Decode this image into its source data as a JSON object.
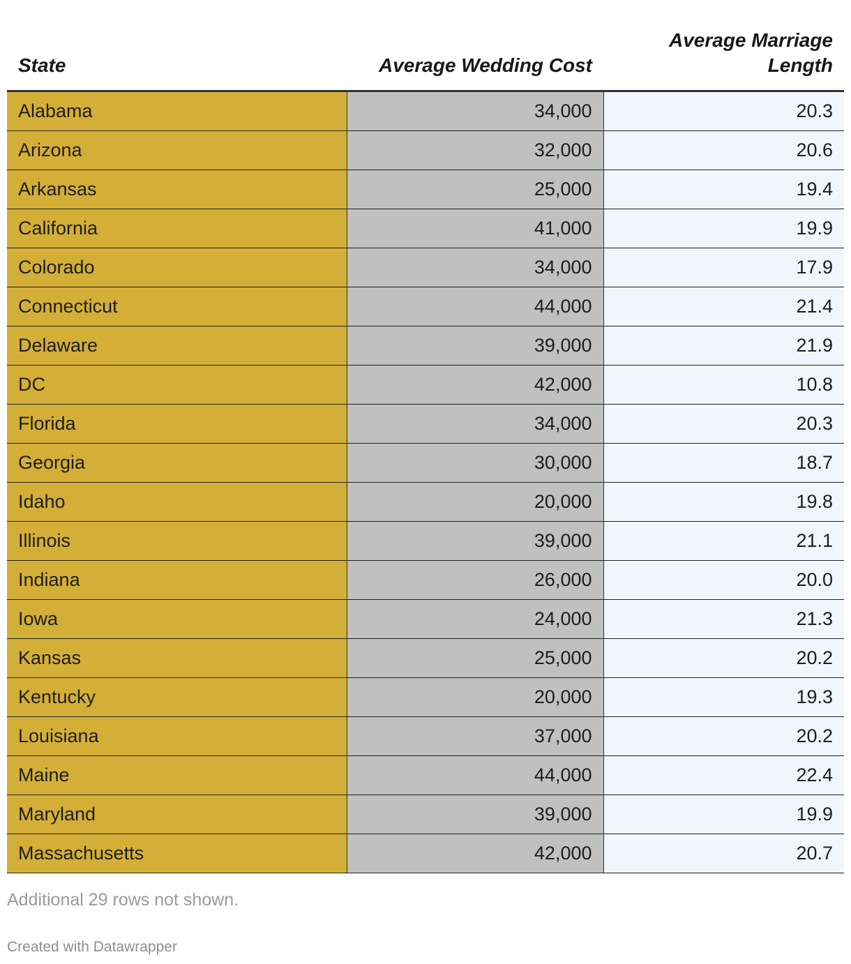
{
  "chart_data": {
    "type": "table",
    "columns": [
      "State",
      "Average Wedding Cost",
      "Average Marriage Length"
    ],
    "rows": [
      {
        "state": "Alabama",
        "cost": "34,000",
        "length": "20.3"
      },
      {
        "state": "Arizona",
        "cost": "32,000",
        "length": "20.6"
      },
      {
        "state": "Arkansas",
        "cost": "25,000",
        "length": "19.4"
      },
      {
        "state": "California",
        "cost": "41,000",
        "length": "19.9"
      },
      {
        "state": "Colorado",
        "cost": "34,000",
        "length": "17.9"
      },
      {
        "state": "Connecticut",
        "cost": "44,000",
        "length": "21.4"
      },
      {
        "state": "Delaware",
        "cost": "39,000",
        "length": "21.9"
      },
      {
        "state": "DC",
        "cost": "42,000",
        "length": "10.8"
      },
      {
        "state": "Florida",
        "cost": "34,000",
        "length": "20.3"
      },
      {
        "state": "Georgia",
        "cost": "30,000",
        "length": "18.7"
      },
      {
        "state": "Idaho",
        "cost": "20,000",
        "length": "19.8"
      },
      {
        "state": "Illinois",
        "cost": "39,000",
        "length": "21.1"
      },
      {
        "state": "Indiana",
        "cost": "26,000",
        "length": "20.0"
      },
      {
        "state": "Iowa",
        "cost": "24,000",
        "length": "21.3"
      },
      {
        "state": "Kansas",
        "cost": "25,000",
        "length": "20.2"
      },
      {
        "state": "Kentucky",
        "cost": "20,000",
        "length": "19.3"
      },
      {
        "state": "Louisiana",
        "cost": "37,000",
        "length": "20.2"
      },
      {
        "state": "Maine",
        "cost": "44,000",
        "length": "22.4"
      },
      {
        "state": "Maryland",
        "cost": "39,000",
        "length": "19.9"
      },
      {
        "state": "Massachusetts",
        "cost": "42,000",
        "length": "20.7"
      }
    ],
    "column_colors": {
      "state": "#d4af37",
      "cost": "#c0c0c0",
      "length": "#f0f6fb"
    }
  },
  "footer": {
    "note": "Additional 29 rows not shown.",
    "credit": "Created with Datawrapper"
  }
}
